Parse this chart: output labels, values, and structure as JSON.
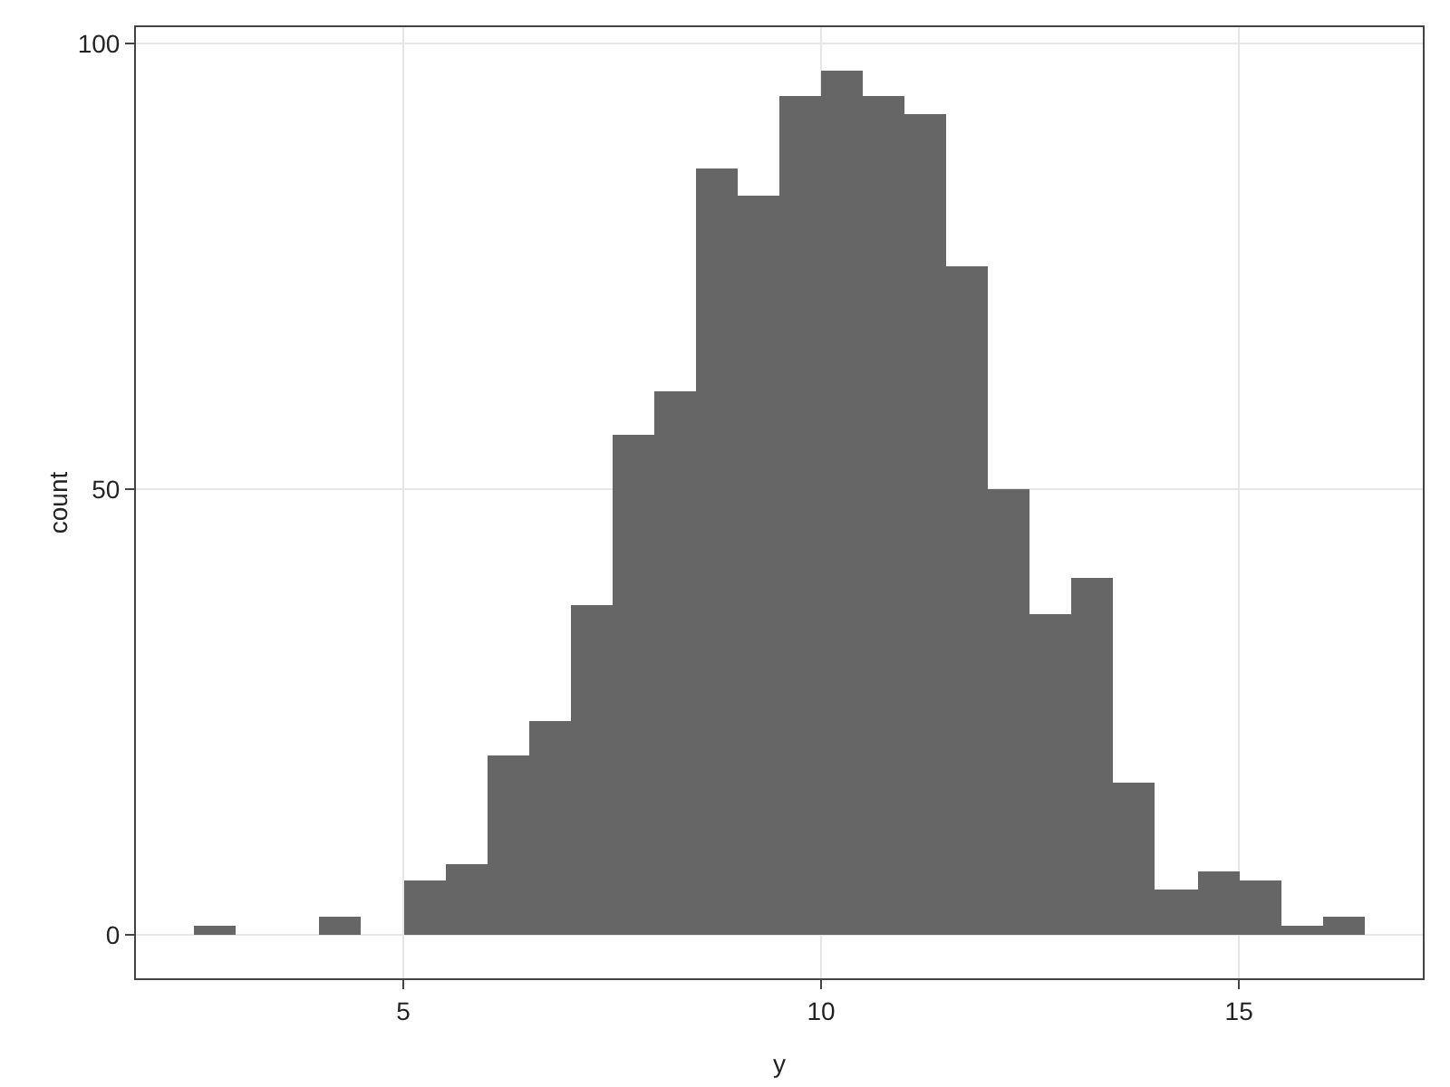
{
  "chart_data": {
    "type": "histogram",
    "xlabel": "y",
    "ylabel": "count",
    "color": "#666666",
    "bins": [
      2.5,
      3,
      3.5,
      4,
      4.5,
      5,
      5.5,
      6,
      6.5,
      7,
      7.5,
      8,
      8.5,
      9,
      9.5,
      10,
      10.5,
      11,
      11.5,
      12,
      12.5,
      13,
      13.5,
      14,
      14.5,
      15,
      15.5,
      16,
      16.5
    ],
    "values": [
      1,
      0,
      0,
      2,
      0,
      6,
      8,
      20,
      24,
      37,
      56,
      61,
      86,
      83,
      94,
      97,
      94,
      92,
      75,
      50,
      36,
      40,
      17,
      5,
      7,
      6,
      1,
      2
    ],
    "xlim": [
      1.8,
      17.2
    ],
    "xticks": [
      5,
      10,
      15
    ],
    "ylim": [
      -4.9,
      101.8
    ],
    "yticks": [
      0,
      50,
      100
    ],
    "grid": true,
    "legend": false
  }
}
